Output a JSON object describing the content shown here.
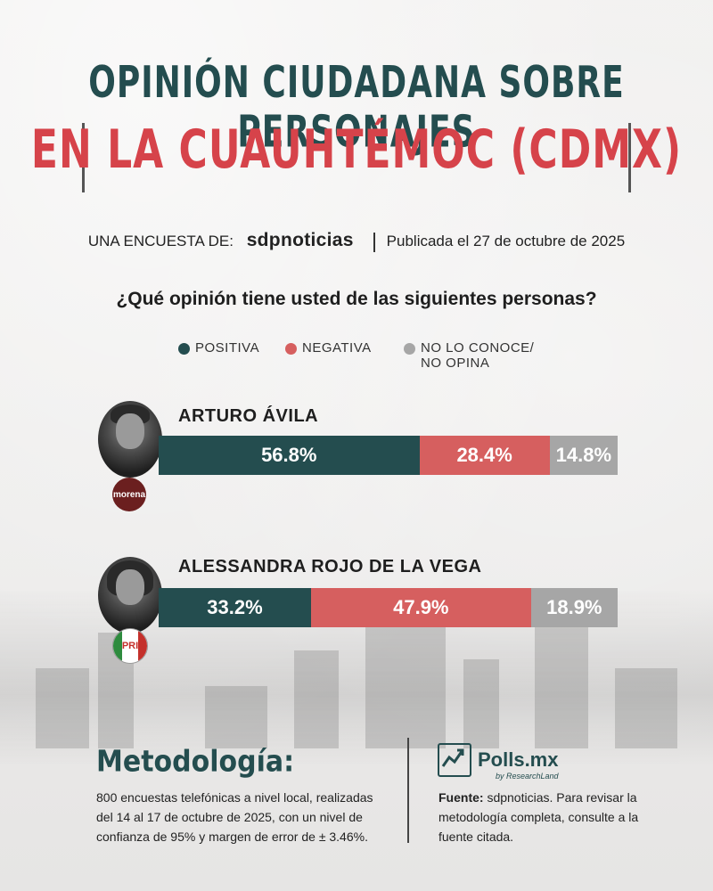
{
  "header": {
    "title_line1": "OPINIÓN CIUDADANA SOBRE PERSONAJES",
    "title_line2": "EN LA CUAUHTÉMOC (CDMX)",
    "byline_prefix": "UNA ENCUESTA DE:",
    "byline_brand": "sdpnoticias",
    "byline_date": "Publicada el 27 de octubre de 2025"
  },
  "question": "¿Qué opinión tiene usted de las siguientes personas?",
  "legend": [
    {
      "label": "POSITIVA",
      "color": "#244d4f"
    },
    {
      "label": "NEGATIVA",
      "color": "#d65f5f"
    },
    {
      "label_line1": "NO LO CONOCE/",
      "label_line2": "NO OPINA",
      "color": "#a6a6a6"
    }
  ],
  "candidates": [
    {
      "name": "ARTURO ÁVILA",
      "party_badge": "morena",
      "party_icon": "morena-logo-icon",
      "values": [
        {
          "label": "56.8%"
        },
        {
          "label": "28.4%"
        },
        {
          "label": "14.8%"
        }
      ]
    },
    {
      "name": "ALESSANDRA ROJO DE LA VEGA",
      "party_badge": "PRI",
      "party_icon": "pri-logo-icon",
      "values": [
        {
          "label": "33.2%"
        },
        {
          "label": "47.9%"
        },
        {
          "label": "18.9%"
        }
      ]
    }
  ],
  "chart_data": {
    "type": "bar",
    "stacked": true,
    "orientation": "horizontal",
    "title": "¿Qué opinión tiene usted de las siguientes personas?",
    "categories": [
      "ARTURO ÁVILA",
      "ALESSANDRA ROJO DE LA VEGA"
    ],
    "series": [
      {
        "name": "POSITIVA",
        "values": [
          56.8,
          33.2
        ],
        "color": "#244d4f"
      },
      {
        "name": "NEGATIVA",
        "values": [
          28.4,
          47.9
        ],
        "color": "#d65f5f"
      },
      {
        "name": "NO LO CONOCE/ NO OPINA",
        "values": [
          14.8,
          18.9
        ],
        "color": "#a6a6a6"
      }
    ],
    "xlim": [
      0,
      100
    ],
    "legend": "top"
  },
  "methodology": {
    "title": "Metodología:",
    "text": "800 encuestas telefónicas a nivel local, realizadas del 14 al 17 de octubre de 2025, con un nivel de confianza de 95% y margen de error de ± 3.46%."
  },
  "footer": {
    "brand": "Polls.mx",
    "brand_sub": "by ResearchLand",
    "source_label": "Fuente:",
    "source_text": "sdpnoticias. Para revisar la metodología completa, consulte a la fuente citada."
  }
}
